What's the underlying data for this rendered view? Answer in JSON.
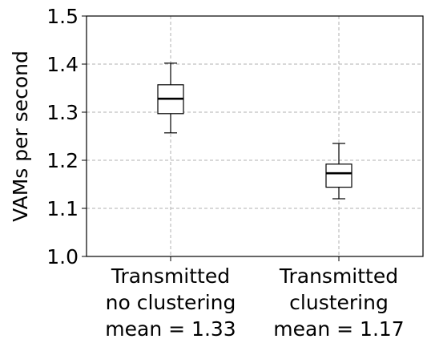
{
  "chart_data": {
    "type": "box",
    "ylabel": "VAMs per second",
    "ylim": [
      1.0,
      1.5
    ],
    "yticks": [
      "1.0",
      "1.1",
      "1.2",
      "1.3",
      "1.4",
      "1.5"
    ],
    "grid": true,
    "categories": [
      [
        "Transmitted",
        "no clustering",
        "mean = 1.33"
      ],
      [
        "Transmitted",
        "clustering",
        "mean = 1.17"
      ]
    ],
    "boxes": [
      {
        "whisker_low": 1.257,
        "q1": 1.297,
        "median": 1.328,
        "q3": 1.357,
        "whisker_high": 1.402
      },
      {
        "whisker_low": 1.12,
        "q1": 1.144,
        "median": 1.173,
        "q3": 1.192,
        "whisker_high": 1.235
      }
    ]
  }
}
